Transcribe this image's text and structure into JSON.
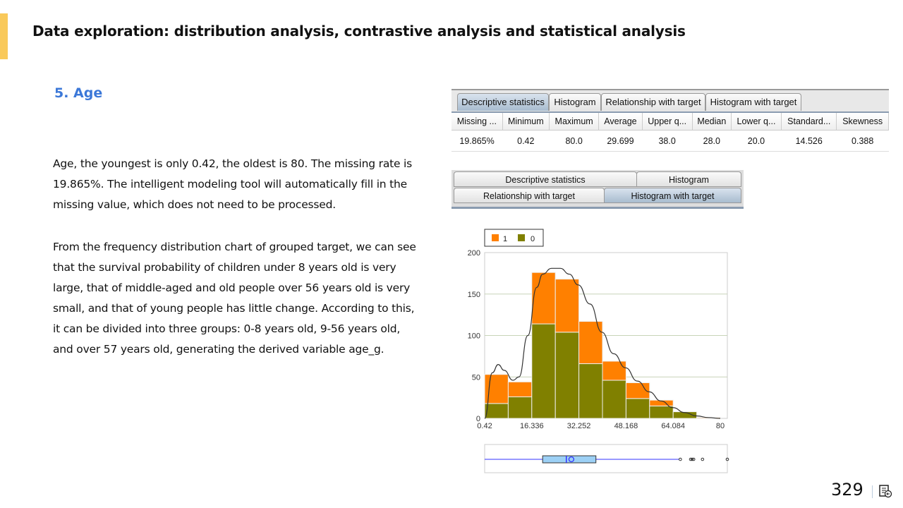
{
  "header": {
    "title": "Data exploration: distribution analysis, contrastive analysis and statistical analysis"
  },
  "section": {
    "title": "5. Age"
  },
  "paragraphs": [
    "Age, the youngest is only 0.42, the oldest is 80. The missing rate is 19.865%. The intelligent modeling tool will automatically fill in the missing value, which does not need to be processed.",
    "From the frequency distribution chart of grouped target, we can see that the survival probability of children under 8 years old is very large, that of middle-aged and old people over 56 years old is very small, and that of young people has little change. According to this, it can be divided into three groups: 0-8 years old, 9-56 years old, and over 57 years old, generating the derived variable age_g."
  ],
  "tabs_top": [
    "Descriptive statistics",
    "Histogram",
    "Relationship with target",
    "Histogram with target"
  ],
  "stats_table": {
    "headers": [
      "Missing ...",
      "Minimum",
      "Maximum",
      "Average",
      "Upper q...",
      "Median",
      "Lower q...",
      "Standard...",
      "Skewness"
    ],
    "values": [
      "19.865%",
      "0.42",
      "80.0",
      "29.699",
      "38.0",
      "28.0",
      "20.0",
      "14.526",
      "0.388"
    ]
  },
  "tabs_bottom": [
    "Descriptive statistics",
    "Histogram",
    "Relationship with target",
    "Histogram with target"
  ],
  "chart_data": {
    "type": "bar",
    "stacked": true,
    "legend": [
      "1",
      "0"
    ],
    "legend_placement": "top-left",
    "colors": {
      "1": "#ff8000",
      "0": "#808000"
    },
    "bin_edges": [
      0.42,
      8.378,
      16.336,
      24.294,
      32.252,
      40.21,
      48.168,
      56.126,
      64.084,
      72.042,
      80
    ],
    "x_tick_labels": [
      "0.42",
      "16.336",
      "32.252",
      "48.168",
      "64.084",
      "80"
    ],
    "x_ticks": [
      0.42,
      16.336,
      32.252,
      48.168,
      64.084,
      80
    ],
    "y_tick_labels": [
      "0",
      "50",
      "100",
      "150",
      "200"
    ],
    "ylim": [
      0,
      200
    ],
    "series": [
      {
        "name": "0",
        "values": [
          18,
          26,
          114,
          104,
          66,
          46,
          24,
          15,
          8,
          0
        ]
      },
      {
        "name": "1",
        "values": [
          35,
          18,
          62,
          64,
          51,
          23,
          19,
          7,
          0,
          1
        ]
      }
    ],
    "density_curve": [
      [
        0.42,
        0
      ],
      [
        3,
        55
      ],
      [
        5,
        65
      ],
      [
        7,
        58
      ],
      [
        10,
        46
      ],
      [
        12,
        50
      ],
      [
        15,
        100
      ],
      [
        18,
        158
      ],
      [
        20,
        174
      ],
      [
        23,
        181
      ],
      [
        26,
        181
      ],
      [
        29,
        174
      ],
      [
        32,
        161
      ],
      [
        36,
        138
      ],
      [
        40,
        104
      ],
      [
        44,
        78
      ],
      [
        48,
        61
      ],
      [
        52,
        45
      ],
      [
        56,
        32
      ],
      [
        60,
        21
      ],
      [
        64,
        13
      ],
      [
        68,
        7
      ],
      [
        72,
        3
      ],
      [
        76,
        1
      ],
      [
        80,
        0
      ]
    ],
    "boxplot": {
      "min": 0.42,
      "q1": 20,
      "median": 28,
      "mean": 29.699,
      "q3": 38,
      "whisker_high": 66,
      "outliers": [
        66.5,
        70,
        70.5,
        71,
        74,
        80
      ]
    },
    "grid": true
  },
  "footer": {
    "page_number": "329"
  }
}
